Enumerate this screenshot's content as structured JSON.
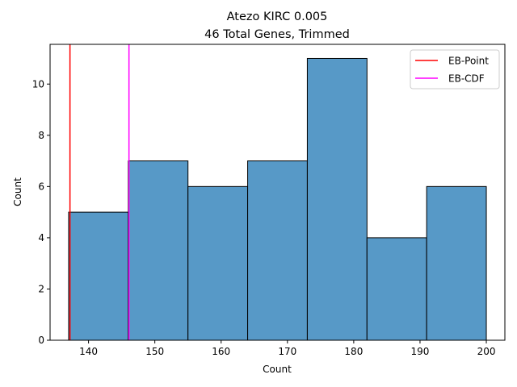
{
  "chart_data": {
    "type": "bar",
    "title": "Atezo KIRC 0.005",
    "subtitle": "46 Total Genes, Trimmed",
    "xlabel": "Count",
    "ylabel": "Count",
    "xlim": [
      134.2,
      202.8
    ],
    "ylim": [
      0,
      11.55
    ],
    "xticks": [
      140,
      150,
      160,
      170,
      180,
      190,
      200
    ],
    "yticks": [
      0,
      2,
      4,
      6,
      8,
      10
    ],
    "bin_edges": [
      137,
      146,
      155,
      164,
      173,
      182,
      191,
      200
    ],
    "values": [
      5,
      7,
      6,
      7,
      11,
      4,
      6
    ],
    "bar_color": "#5799c7",
    "bar_edge_color": "#000000",
    "vlines": [
      {
        "name": "EB-Point",
        "x": 137.2,
        "color": "#ff0000"
      },
      {
        "name": "EB-CDF",
        "x": 146.1,
        "color": "#ff00ff"
      }
    ],
    "legend_position": "top-right",
    "grid": false
  }
}
